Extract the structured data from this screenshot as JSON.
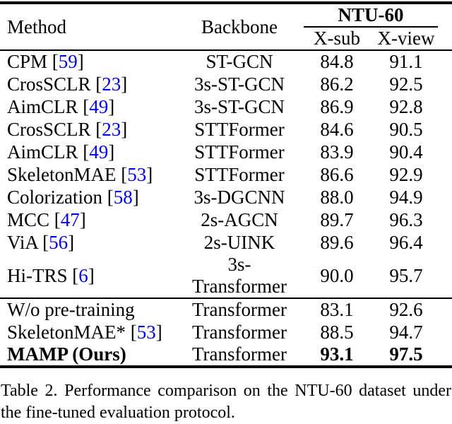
{
  "colors": {
    "citation_blue": "#0000ee",
    "text": "#000000",
    "rule": "#000000"
  },
  "table": {
    "header": {
      "method": "Method",
      "backbone": "Backbone",
      "group": "NTU-60",
      "sub_columns": [
        "X-sub",
        "X-view"
      ]
    },
    "rows": [
      {
        "method": "CPM",
        "cite": "59",
        "backbone": "ST-GCN",
        "xsub": "84.8",
        "xview": "91.1"
      },
      {
        "method": "CrosSCLR",
        "cite": "23",
        "backbone": "3s-ST-GCN",
        "xsub": "86.2",
        "xview": "92.5"
      },
      {
        "method": "AimCLR",
        "cite": "49",
        "backbone": "3s-ST-GCN",
        "xsub": "86.9",
        "xview": "92.8"
      },
      {
        "method": "CrosSCLR",
        "cite": "23",
        "backbone": "STTFormer",
        "xsub": "84.6",
        "xview": "90.5"
      },
      {
        "method": "AimCLR",
        "cite": "49",
        "backbone": "STTFormer",
        "xsub": "83.9",
        "xview": "90.4"
      },
      {
        "method": "SkeletonMAE",
        "cite": "53",
        "backbone": "STTFormer",
        "xsub": "86.6",
        "xview": "92.9"
      },
      {
        "method": "Colorization",
        "cite": "58",
        "backbone": "3s-DGCNN",
        "xsub": "88.0",
        "xview": "94.9"
      },
      {
        "method": "MCC",
        "cite": "47",
        "backbone": "2s-AGCN",
        "xsub": "89.7",
        "xview": "96.3"
      },
      {
        "method": "ViA",
        "cite": "56",
        "backbone": "2s-UINK",
        "xsub": "89.6",
        "xview": "96.4"
      },
      {
        "method": "Hi-TRS",
        "cite": "6",
        "backbone": "3s-Transformer",
        "xsub": "90.0",
        "xview": "95.7"
      },
      {
        "method": "W/o pre-training",
        "cite": null,
        "backbone": "Transformer",
        "xsub": "83.1",
        "xview": "92.6",
        "section_start": true
      },
      {
        "method": "SkeletonMAE*",
        "cite": "53",
        "backbone": "Transformer",
        "xsub": "88.5",
        "xview": "94.7"
      },
      {
        "method": "MAMP (Ours)",
        "cite": null,
        "backbone": "Transformer",
        "xsub": "93.1",
        "xview": "97.5",
        "bold": true
      }
    ]
  },
  "caption": {
    "line1": "Table 2.  Performance comparison on the NTU-60 dataset under",
    "line2": "the fine-tuned evaluation protocol."
  }
}
